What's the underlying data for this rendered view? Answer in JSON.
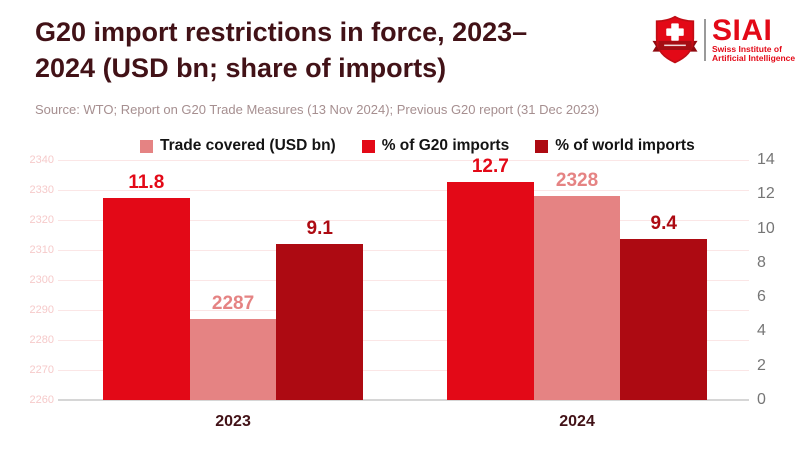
{
  "header": {
    "title_line1": "G20 import restrictions in force, 2023–",
    "title_line2": "2024 (USD bn; share of imports)",
    "source": "Source: WTO; Report on G20 Trade Measures (13 Nov 2024); Previous G20 report (31 Dec 2023)"
  },
  "logo": {
    "acronym": "SIAI",
    "name_line1": "Swiss Institute of",
    "name_line2": "Artificial Intelligence",
    "colors": {
      "red": "#e30917",
      "dark_red": "#a50d13"
    }
  },
  "legend": {
    "items": [
      {
        "label": "Trade covered (USD bn)",
        "color": "#e58383"
      },
      {
        "label": "% of G20 imports",
        "color": "#e30917"
      },
      {
        "label": "% of world imports",
        "color": "#ad0a12"
      }
    ]
  },
  "chart_data": {
    "type": "bar",
    "title": "G20 import restrictions in force, 2023–2024 (USD bn; share of imports)",
    "categories": [
      "2023",
      "2024"
    ],
    "series": [
      {
        "name": "% of G20 imports",
        "axis": "right",
        "color": "#e30917",
        "values": [
          11.8,
          12.7
        ]
      },
      {
        "name": "Trade covered (USD bn)",
        "axis": "left",
        "color": "#e58383",
        "values": [
          2287,
          2328
        ]
      },
      {
        "name": "% of world imports",
        "axis": "right",
        "color": "#ad0a12",
        "values": [
          9.1,
          9.4
        ]
      }
    ],
    "left_axis": {
      "min": 2260,
      "max": 2340,
      "step": 10,
      "tick_color": "#f6caca"
    },
    "right_axis": {
      "min": 0,
      "max": 14,
      "step": 2,
      "tick_color": "#767676"
    },
    "grid": true,
    "legend_position": "top"
  }
}
